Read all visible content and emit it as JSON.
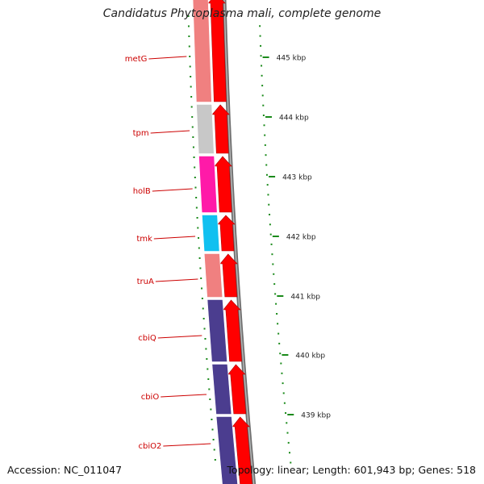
{
  "title": "Candidatus Phytoplasma mali, complete genome",
  "footer": {
    "accession": "Accession: NC_011047",
    "summary": "Topology: linear; Length: 601,943 bp; Genes: 518"
  },
  "colors": {
    "background": "#ffffff",
    "gene_arrow": "#ff0000",
    "backbone": "#808080",
    "tick": "#1a8a1a",
    "label": "#cc0000"
  },
  "genes": [
    {
      "name": "metG",
      "color": "#f08080"
    },
    {
      "name": "tpm",
      "color": "#c8c8c8"
    },
    {
      "name": "holB",
      "color": "#ff1aa8"
    },
    {
      "name": "tmk",
      "color": "#10c0f0"
    },
    {
      "name": "truA",
      "color": "#f08080"
    },
    {
      "name": "cbiQ",
      "color": "#4b3d8f"
    },
    {
      "name": "cbiO",
      "color": "#4b3d8f"
    },
    {
      "name": "cbiO2",
      "color": "#4b3d8f"
    }
  ],
  "scale_labels": [
    "445 kbp",
    "444 kbp",
    "443 kbp",
    "442 kbp",
    "441 kbp",
    "440 kbp",
    "439 kbp"
  ]
}
